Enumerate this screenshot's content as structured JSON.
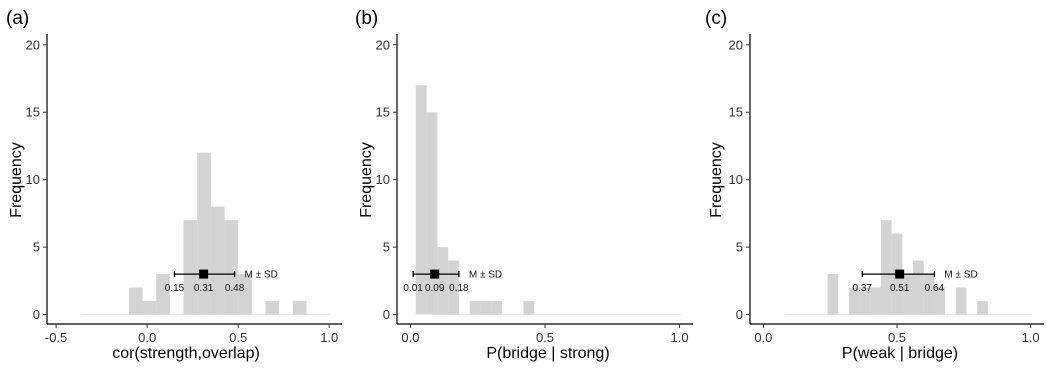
{
  "chart_data": [
    {
      "type": "bar",
      "panel_label": "(a)",
      "xlabel": "cor(strength,overlap)",
      "ylabel": "Frequency",
      "xlim": [
        -0.55,
        1.07
      ],
      "ylim": [
        -0.7,
        20.8
      ],
      "xticks": [
        -0.5,
        0.0,
        0.5,
        1.0
      ],
      "xtick_labels": [
        "-0.5",
        "0.0",
        "0.5",
        "1.0"
      ],
      "yticks": [
        0,
        5,
        10,
        15,
        20
      ],
      "ytick_labels": [
        "0",
        "5",
        "10",
        "15",
        "20"
      ],
      "bin_width": 0.075,
      "bins": [
        {
          "x0": -0.1,
          "count": 2
        },
        {
          "x0": -0.025,
          "count": 1
        },
        {
          "x0": 0.05,
          "count": 3
        },
        {
          "x0": 0.125,
          "count": 0
        },
        {
          "x0": 0.2,
          "count": 7
        },
        {
          "x0": 0.275,
          "count": 12
        },
        {
          "x0": 0.35,
          "count": 8
        },
        {
          "x0": 0.425,
          "count": 7
        },
        {
          "x0": 0.5,
          "count": 3
        },
        {
          "x0": 0.575,
          "count": 0
        },
        {
          "x0": 0.65,
          "count": 1
        },
        {
          "x0": 0.725,
          "count": 0
        },
        {
          "x0": 0.8,
          "count": 1
        }
      ],
      "summary": {
        "mean": 0.31,
        "sd_low": 0.15,
        "sd_high": 0.48,
        "y": 3,
        "label": "M ± SD",
        "mean_label": "0.31",
        "low_label": "0.15",
        "high_label": "0.48"
      },
      "grid": false,
      "colors": {
        "bars": "#d3d3d3",
        "marker": "#000000"
      }
    },
    {
      "type": "bar",
      "panel_label": "(b)",
      "xlabel": "P(bridge | strong)",
      "ylabel": "Frequency",
      "xlim": [
        -0.05,
        1.05
      ],
      "ylim": [
        -0.7,
        20.8
      ],
      "xticks": [
        0.0,
        0.5,
        1.0
      ],
      "xtick_labels": [
        "0.0",
        "0.5",
        "1.0"
      ],
      "yticks": [
        0,
        5,
        10,
        15,
        20
      ],
      "ytick_labels": [
        "0",
        "5",
        "10",
        "15",
        "20"
      ],
      "bin_width": 0.04,
      "bins": [
        {
          "x0": 0.02,
          "count": 17
        },
        {
          "x0": 0.06,
          "count": 15
        },
        {
          "x0": 0.1,
          "count": 5
        },
        {
          "x0": 0.14,
          "count": 4
        },
        {
          "x0": 0.18,
          "count": 0
        },
        {
          "x0": 0.22,
          "count": 1
        },
        {
          "x0": 0.26,
          "count": 1
        },
        {
          "x0": 0.3,
          "count": 1
        },
        {
          "x0": 0.34,
          "count": 0
        },
        {
          "x0": 0.38,
          "count": 0
        },
        {
          "x0": 0.42,
          "count": 1
        }
      ],
      "summary": {
        "mean": 0.09,
        "sd_low": 0.01,
        "sd_high": 0.18,
        "y": 3,
        "label": "M ± SD",
        "mean_label": "0.09",
        "low_label": "0.01",
        "high_label": "0.18"
      },
      "grid": false,
      "colors": {
        "bars": "#d3d3d3",
        "marker": "#000000"
      }
    },
    {
      "type": "bar",
      "panel_label": "(c)",
      "xlabel": "P(weak | bridge)",
      "ylabel": "Frequency",
      "xlim": [
        -0.05,
        1.05
      ],
      "ylim": [
        -0.7,
        20.8
      ],
      "xticks": [
        0.0,
        0.5,
        1.0
      ],
      "xtick_labels": [
        "0.0",
        "0.5",
        "1.0"
      ],
      "yticks": [
        0,
        5,
        10,
        15,
        20
      ],
      "ytick_labels": [
        "0",
        "5",
        "10",
        "15",
        "20"
      ],
      "bin_width": 0.04,
      "bins": [
        {
          "x0": 0.24,
          "count": 3
        },
        {
          "x0": 0.28,
          "count": 0
        },
        {
          "x0": 0.32,
          "count": 2
        },
        {
          "x0": 0.36,
          "count": 2
        },
        {
          "x0": 0.4,
          "count": 2
        },
        {
          "x0": 0.44,
          "count": 7
        },
        {
          "x0": 0.48,
          "count": 6
        },
        {
          "x0": 0.52,
          "count": 3
        },
        {
          "x0": 0.56,
          "count": 4
        },
        {
          "x0": 0.6,
          "count": 3
        },
        {
          "x0": 0.64,
          "count": 2
        },
        {
          "x0": 0.68,
          "count": 0
        },
        {
          "x0": 0.72,
          "count": 2
        },
        {
          "x0": 0.76,
          "count": 0
        },
        {
          "x0": 0.8,
          "count": 1
        }
      ],
      "summary": {
        "mean": 0.51,
        "sd_low": 0.37,
        "sd_high": 0.64,
        "y": 3,
        "label": "M ± SD",
        "mean_label": "0.51",
        "low_label": "0.37",
        "high_label": "0.64"
      },
      "grid": false,
      "colors": {
        "bars": "#d3d3d3",
        "marker": "#000000"
      }
    }
  ]
}
